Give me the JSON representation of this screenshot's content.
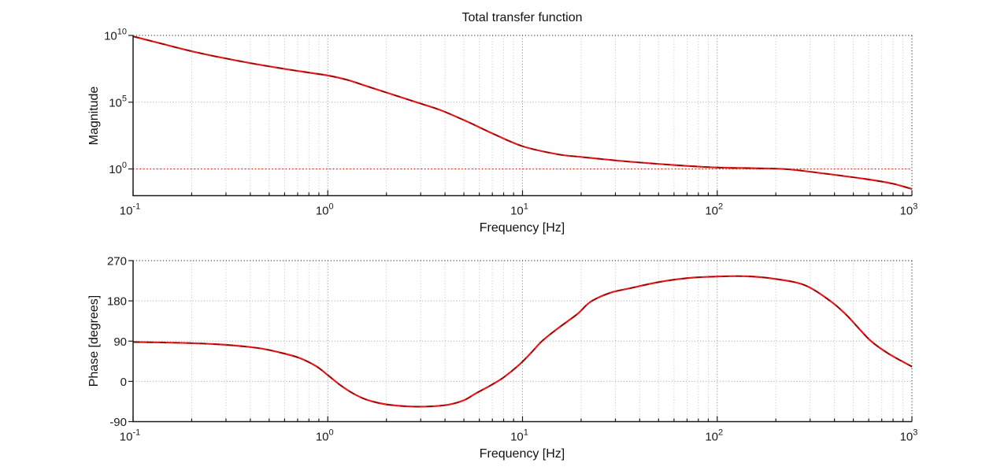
{
  "figure": {
    "background": "#ffffff",
    "title": "Total transfer function"
  },
  "colors": {
    "curve": "#e31b1b",
    "curve_dash_overlay": "#7a0a0a",
    "reference_line": "#cc3318",
    "axis": "#1a1a1a",
    "grid_major": "#7e7e7e",
    "grid_minor": "#c3c3c3"
  },
  "chart_data": [
    {
      "type": "line",
      "id": "magnitude",
      "title": "Total transfer function",
      "xlabel": "Frequency [Hz]",
      "ylabel": "Magnitude",
      "xscale": "log",
      "yscale": "log",
      "xlim": [
        0.1,
        1000
      ],
      "ylim": [
        0.01,
        10000000000
      ],
      "grid": true,
      "legend": "none",
      "xtick_exponents": [
        -1,
        0,
        1,
        2,
        3
      ],
      "xtick_labels": [
        "10^-1",
        "10^0",
        "10^1",
        "10^2",
        "10^3"
      ],
      "ytick_exponents": [
        0,
        5,
        10
      ],
      "ytick_labels": [
        "10^0",
        "10^5",
        "10^10"
      ],
      "series": [
        {
          "name": "total-transfer-magnitude",
          "color": "#e31b1b",
          "dashed_overlay": true,
          "points_log10f_log10mag": [
            [
              -1.0,
              9.93
            ],
            [
              -0.85,
              9.37
            ],
            [
              -0.7,
              8.82
            ],
            [
              -0.55,
              8.35
            ],
            [
              -0.4,
              7.93
            ],
            [
              -0.25,
              7.56
            ],
            [
              -0.1,
              7.22
            ],
            [
              0.0,
              7.0
            ],
            [
              0.1,
              6.67
            ],
            [
              0.2,
              6.2
            ],
            [
              0.31,
              5.68
            ],
            [
              0.45,
              5.02
            ],
            [
              0.58,
              4.4
            ],
            [
              0.72,
              3.52
            ],
            [
              0.85,
              2.63
            ],
            [
              1.0,
              1.7
            ],
            [
              1.18,
              1.1
            ],
            [
              1.3,
              0.9
            ],
            [
              1.45,
              0.68
            ],
            [
              1.58,
              0.51
            ],
            [
              1.8,
              0.27
            ],
            [
              2.0,
              0.11
            ],
            [
              2.2,
              0.05
            ],
            [
              2.36,
              -0.02
            ],
            [
              2.56,
              -0.36
            ],
            [
              2.77,
              -0.77
            ],
            [
              2.9,
              -1.1
            ],
            [
              3.0,
              -1.5
            ]
          ]
        },
        {
          "name": "unity-gain-reference",
          "style": "dotted",
          "color": "#cc3318",
          "y_value": 1
        }
      ]
    },
    {
      "type": "line",
      "id": "phase",
      "title": "",
      "xlabel": "Frequency [Hz]",
      "ylabel": "Phase [degrees]",
      "xscale": "log",
      "yscale": "linear",
      "xlim": [
        0.1,
        1000
      ],
      "ylim": [
        -90,
        270
      ],
      "grid": true,
      "legend": "none",
      "xtick_exponents": [
        -1,
        0,
        1,
        2,
        3
      ],
      "xtick_labels": [
        "10^-1",
        "10^0",
        "10^1",
        "10^2",
        "10^3"
      ],
      "yticks": [
        -90,
        0,
        90,
        180,
        270
      ],
      "series": [
        {
          "name": "total-transfer-phase",
          "color": "#e31b1b",
          "dashed_overlay": true,
          "points_log10f_phase_deg": [
            [
              -1.0,
              88
            ],
            [
              -0.85,
              87
            ],
            [
              -0.7,
              85.5
            ],
            [
              -0.55,
              82.5
            ],
            [
              -0.45,
              79
            ],
            [
              -0.35,
              74
            ],
            [
              -0.25,
              65
            ],
            [
              -0.15,
              53
            ],
            [
              -0.06,
              34
            ],
            [
              0.0,
              14
            ],
            [
              0.06,
              -7
            ],
            [
              0.13,
              -27
            ],
            [
              0.2,
              -41
            ],
            [
              0.3,
              -51.5
            ],
            [
              0.42,
              -56
            ],
            [
              0.52,
              -56
            ],
            [
              0.62,
              -52
            ],
            [
              0.7,
              -42
            ],
            [
              0.76,
              -27
            ],
            [
              0.84,
              -8
            ],
            [
              0.9,
              8
            ],
            [
              0.98,
              36
            ],
            [
              1.04,
              62
            ],
            [
              1.1,
              90
            ],
            [
              1.18,
              118
            ],
            [
              1.28,
              150
            ],
            [
              1.35,
              178
            ],
            [
              1.45,
              198
            ],
            [
              1.55,
              208
            ],
            [
              1.7,
              222
            ],
            [
              1.85,
              231
            ],
            [
              2.0,
              234.5
            ],
            [
              2.15,
              235
            ],
            [
              2.3,
              229
            ],
            [
              2.45,
              215
            ],
            [
              2.58,
              180
            ],
            [
              2.66,
              150
            ],
            [
              2.72,
              122
            ],
            [
              2.79,
              90
            ],
            [
              2.88,
              62
            ],
            [
              3.0,
              33
            ]
          ]
        }
      ]
    }
  ]
}
